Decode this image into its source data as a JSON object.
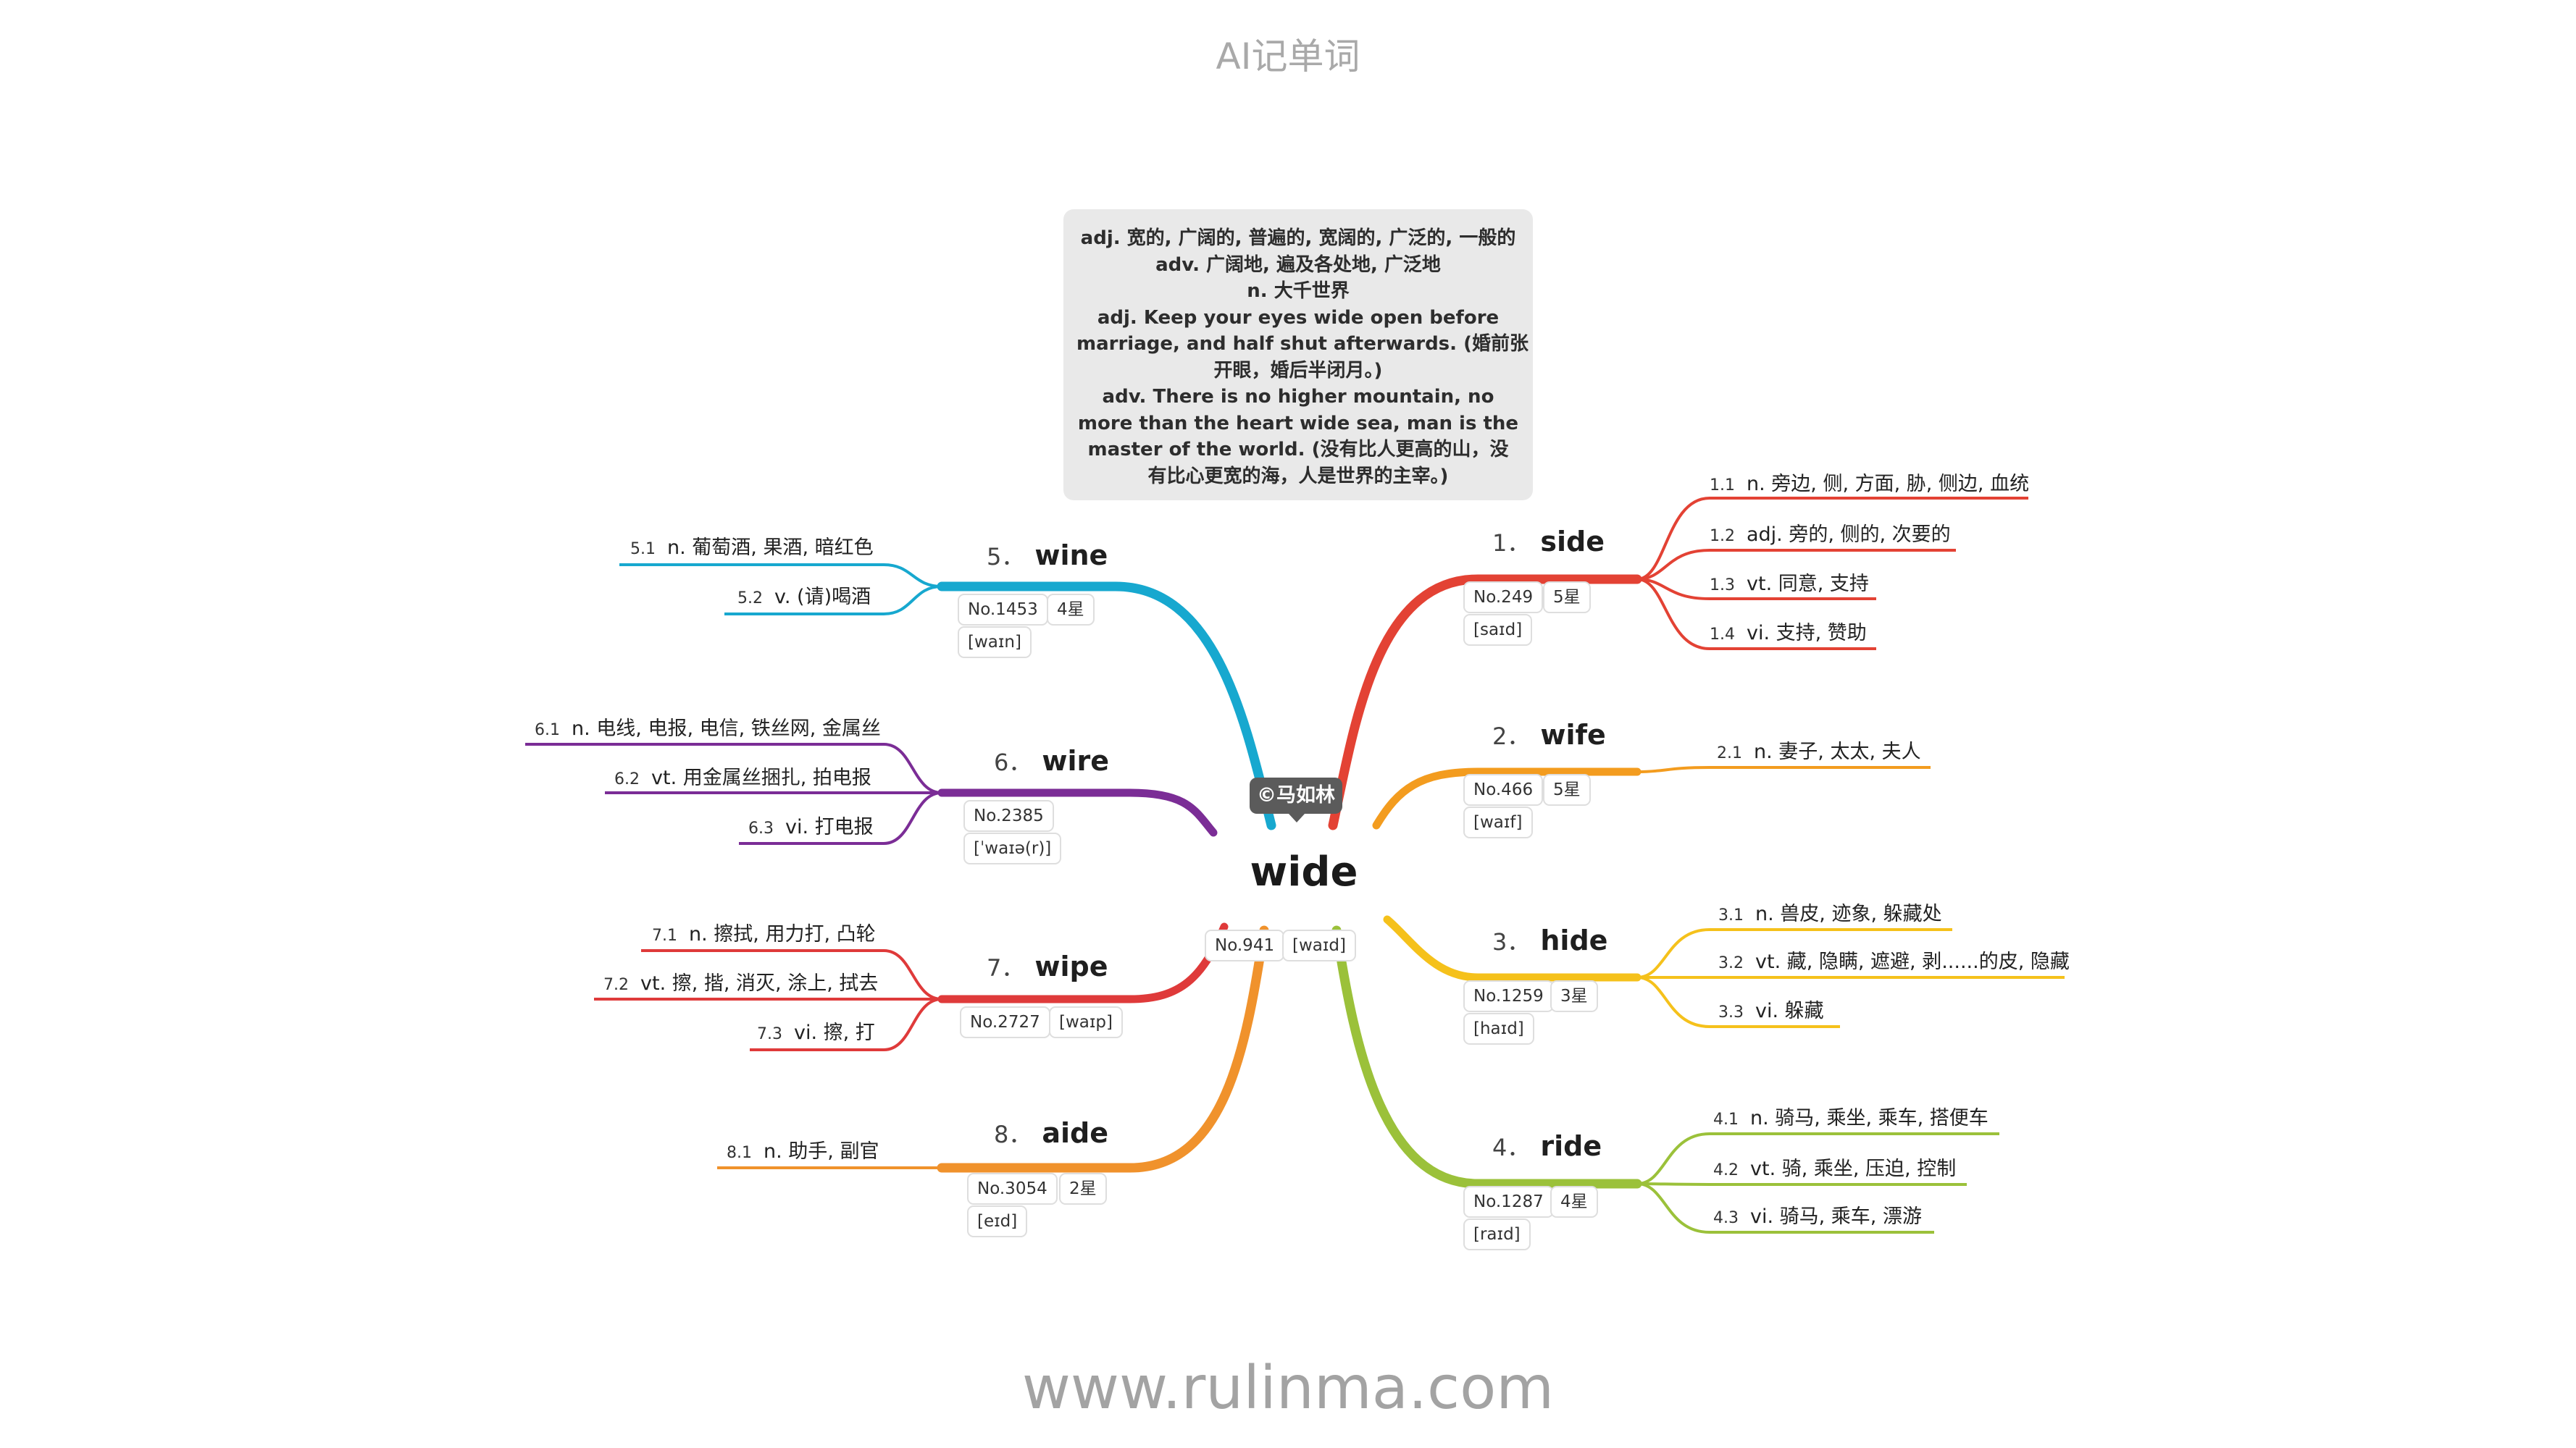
{
  "app_title": "AI记单词",
  "website": "www.rulinma.com",
  "copyright": "©马如林",
  "center": {
    "word": "wide",
    "no": "No.941",
    "ipa": "[waɪd]"
  },
  "definitions": [
    "adj. 宽的, 广阔的, 普遍的, 宽阔的, 广泛的, 一般的",
    "adv. 广阔地, 遍及各处地, 广泛地",
    "n. 大千世界",
    "adj. Keep your eyes wide open before",
    "marriage, and half shut afterwards. (婚前张",
    "开眼，婚后半闭月。)",
    "adv. There is no higher mountain, no",
    "more than the heart wide sea, man is the",
    "master of the world. (没有比人更高的山，没",
    "有比心更宽的海，人是世界的主宰。)"
  ],
  "colors": {
    "side": "#e34234",
    "wife": "#f39c1f",
    "hide": "#f5c11b",
    "ride": "#9bc13a",
    "wine": "#17a8cf",
    "wire": "#7b2d96",
    "wipe": "#df3a3a",
    "aide": "#f0922c"
  },
  "nodes": [
    {
      "num": "1．",
      "word": "side",
      "no": "No.249",
      "star": "5星",
      "ipa": "[saɪd]",
      "senses": [
        {
          "id": "1.1",
          "text": "n. 旁边, 侧, 方面, 胁, 侧边, 血统"
        },
        {
          "id": "1.2",
          "text": "adj. 旁的, 侧的, 次要的"
        },
        {
          "id": "1.3",
          "text": "vt. 同意, 支持"
        },
        {
          "id": "1.4",
          "text": "vi. 支持, 赞助"
        }
      ]
    },
    {
      "num": "2．",
      "word": "wife",
      "no": "No.466",
      "star": "5星",
      "ipa": "[waɪf]",
      "senses": [
        {
          "id": "2.1",
          "text": "n. 妻子, 太太, 夫人"
        }
      ]
    },
    {
      "num": "3．",
      "word": "hide",
      "no": "No.1259",
      "star": "3星",
      "ipa": "[haɪd]",
      "senses": [
        {
          "id": "3.1",
          "text": "n. 兽皮, 迹象, 躲藏处"
        },
        {
          "id": "3.2",
          "text": "vt. 藏, 隐瞒, 遮避, 剥......的皮, 隐藏"
        },
        {
          "id": "3.3",
          "text": "vi. 躲藏"
        }
      ]
    },
    {
      "num": "4．",
      "word": "ride",
      "no": "No.1287",
      "star": "4星",
      "ipa": "[raɪd]",
      "senses": [
        {
          "id": "4.1",
          "text": "n. 骑马, 乘坐, 乘车, 搭便车"
        },
        {
          "id": "4.2",
          "text": "vt. 骑, 乘坐, 压迫, 控制"
        },
        {
          "id": "4.3",
          "text": "vi. 骑马, 乘车, 漂游"
        }
      ]
    },
    {
      "num": "5．",
      "word": "wine",
      "no": "No.1453",
      "star": "4星",
      "ipa": "[waɪn]",
      "senses": [
        {
          "id": "5.1",
          "text": "n. 葡萄酒, 果酒, 暗红色"
        },
        {
          "id": "5.2",
          "text": "v. (请)喝酒"
        }
      ]
    },
    {
      "num": "6．",
      "word": "wire",
      "no": "No.2385",
      "ipa": "[ˈwaɪə(r)]",
      "senses": [
        {
          "id": "6.1",
          "text": "n. 电线, 电报, 电信, 铁丝网, 金属丝"
        },
        {
          "id": "6.2",
          "text": "vt. 用金属丝捆扎, 拍电报"
        },
        {
          "id": "6.3",
          "text": "vi. 打电报"
        }
      ]
    },
    {
      "num": "7．",
      "word": "wipe",
      "no": "No.2727",
      "ipa": "[waɪp]",
      "senses": [
        {
          "id": "7.1",
          "text": "n. 擦拭, 用力打, 凸轮"
        },
        {
          "id": "7.2",
          "text": "vt. 擦, 揩, 消灭, 涂上, 拭去"
        },
        {
          "id": "7.3",
          "text": "vi. 擦, 打"
        }
      ]
    },
    {
      "num": "8．",
      "word": "aide",
      "no": "No.3054",
      "star": "2星",
      "ipa": "[eɪd]",
      "senses": [
        {
          "id": "8.1",
          "text": "n. 助手, 副官"
        }
      ]
    }
  ]
}
